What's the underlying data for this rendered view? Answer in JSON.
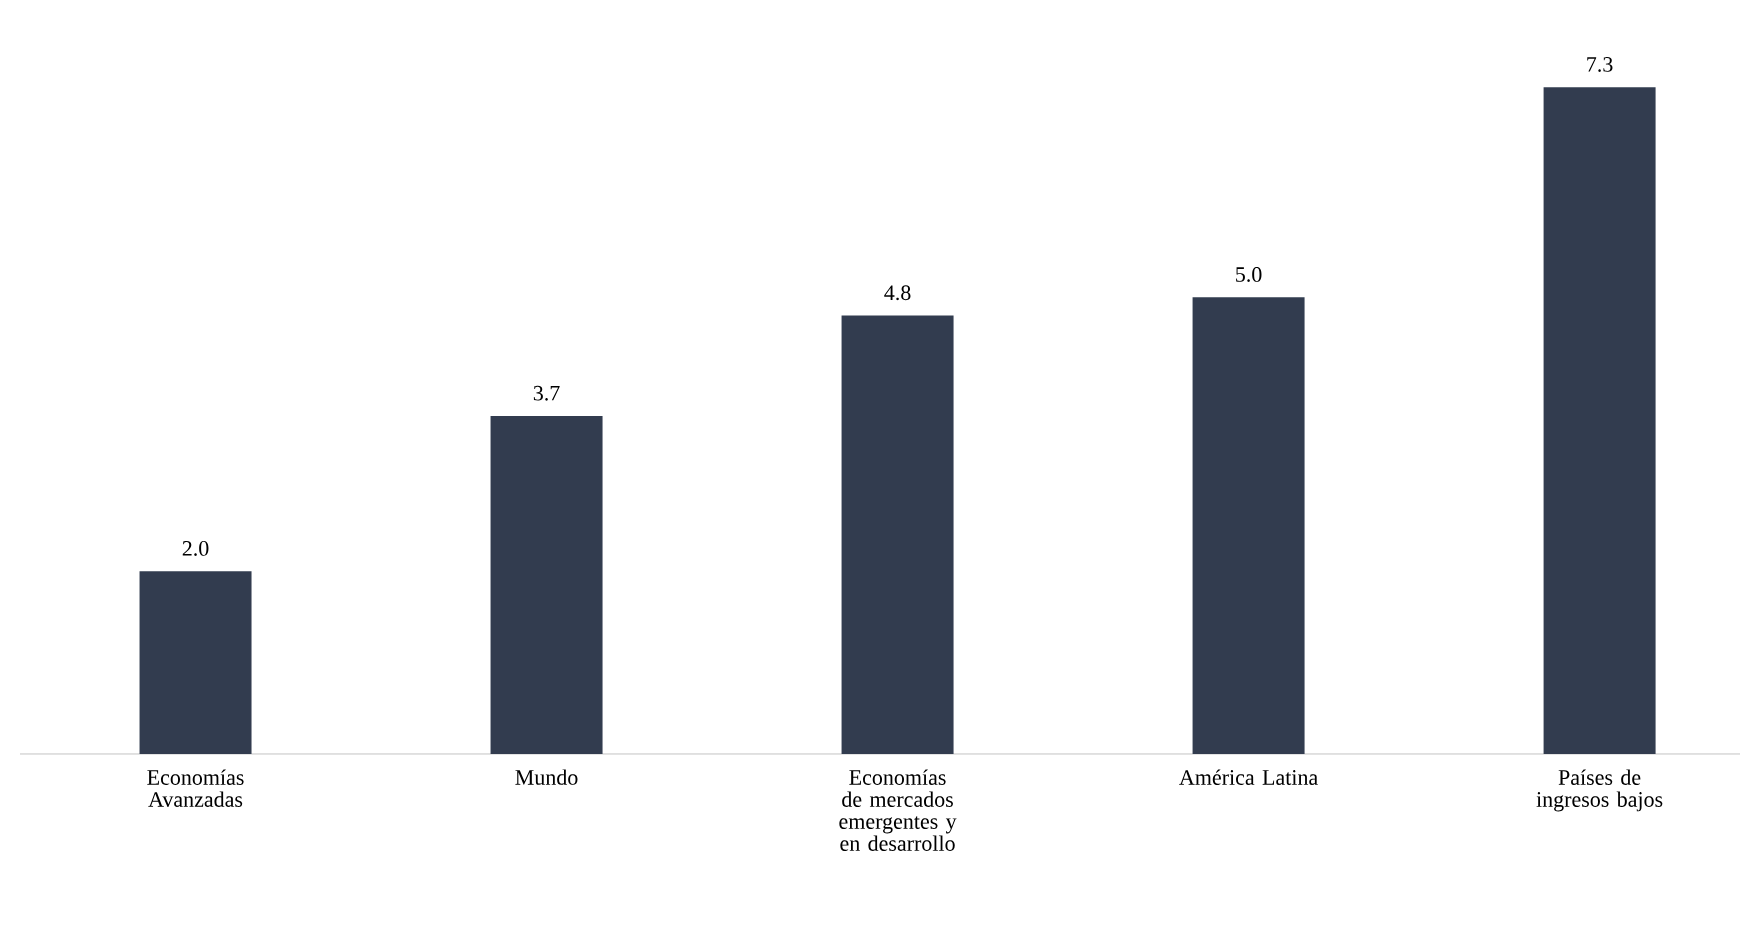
{
  "chart_data": {
    "type": "bar",
    "categories": [
      "Economías Avanzadas",
      "Mundo",
      "Economías de mercados emergentes y en desarrollo",
      "América Latina",
      "Países de ingresos bajos"
    ],
    "values": [
      2.0,
      3.7,
      4.8,
      5.0,
      7.3
    ],
    "value_labels": [
      "2.0",
      "3.7",
      "4.8",
      "5.0",
      "7.3"
    ],
    "color": "#323c4f"
  }
}
